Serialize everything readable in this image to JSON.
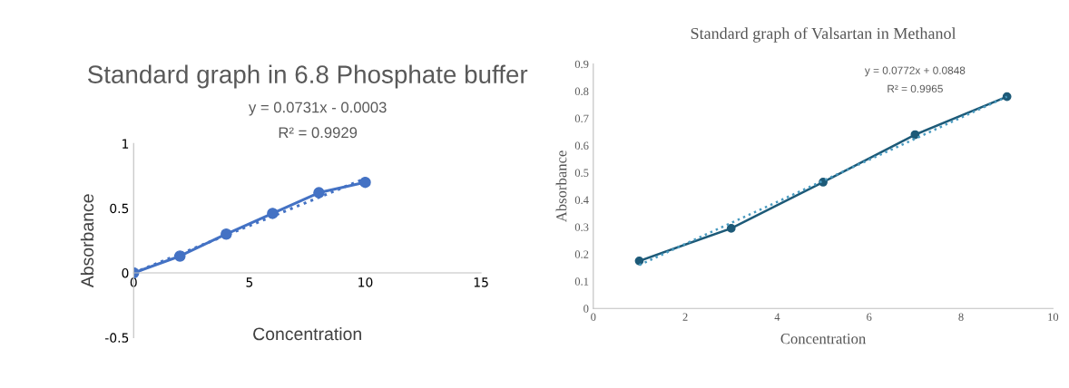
{
  "chart_data": [
    {
      "type": "line",
      "title": "Standard graph in 6.8 Phosphate buffer",
      "xlabel": "Concentration",
      "ylabel": "Absorbance",
      "xlim": [
        0,
        15
      ],
      "xticks": [
        0,
        5,
        10,
        15
      ],
      "ylim": [
        -0.5,
        1
      ],
      "yticks": [
        -0.5,
        0,
        0.5,
        1
      ],
      "grid": false,
      "legend": false,
      "annotations": [
        "y = 0.0731x - 0.0003",
        "R² = 0.9929"
      ],
      "series": [
        {
          "color": "#4472c4",
          "x": [
            0,
            2,
            4,
            6,
            8,
            10
          ],
          "values": [
            0,
            0.13,
            0.3,
            0.46,
            0.62,
            0.7
          ],
          "marker": "circle",
          "line_style": "solid"
        },
        {
          "color": "#4472c4",
          "x": [
            0,
            10
          ],
          "values": [
            0,
            0.73
          ],
          "marker": "none",
          "line_style": "dotted"
        }
      ]
    },
    {
      "type": "line",
      "title": "Standard graph of Valsartan in Methanol",
      "xlabel": "Concentration",
      "ylabel": "Absorbance",
      "xlim": [
        0,
        10
      ],
      "xticks": [
        0,
        2,
        4,
        6,
        8,
        10
      ],
      "ylim": [
        0,
        0.9
      ],
      "yticks": [
        0,
        0.1,
        0.2,
        0.3,
        0.4,
        0.5,
        0.6,
        0.7,
        0.8,
        0.9
      ],
      "grid": false,
      "legend": false,
      "annotations": [
        "y = 0.0772x + 0.0848",
        "R² = 0.9965"
      ],
      "series": [
        {
          "color": "#1d5a78",
          "x": [
            1,
            3,
            5,
            7,
            9
          ],
          "values": [
            0.175,
            0.295,
            0.465,
            0.64,
            0.78
          ],
          "marker": "circle",
          "line_style": "solid"
        },
        {
          "color": "#4a9bc0",
          "x": [
            1,
            9
          ],
          "values": [
            0.16,
            0.78
          ],
          "marker": "none",
          "line_style": "dotted"
        }
      ]
    }
  ]
}
